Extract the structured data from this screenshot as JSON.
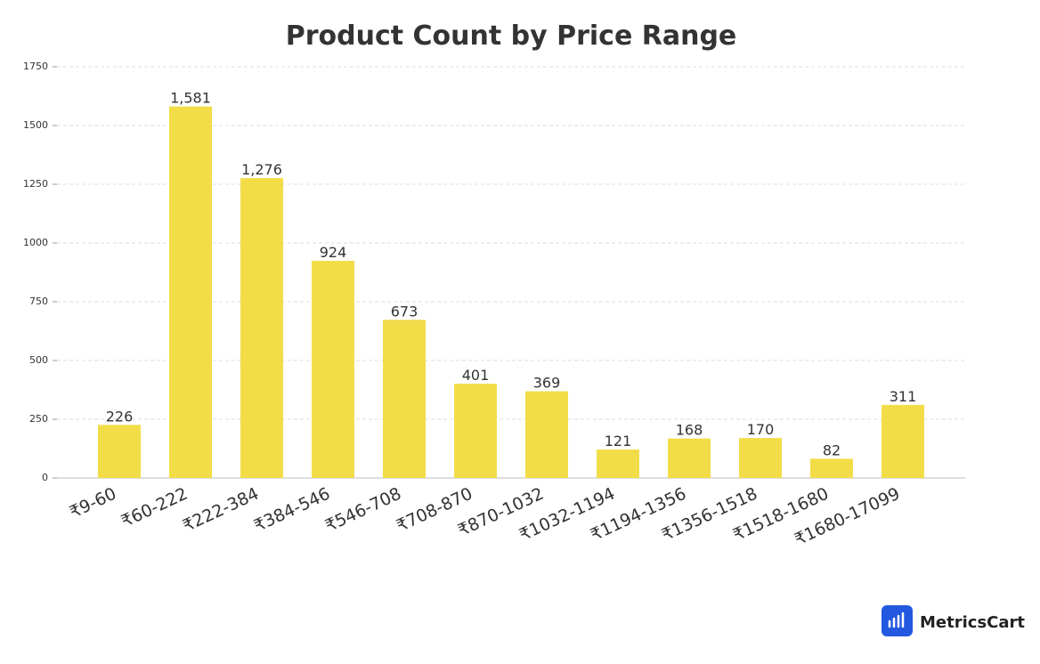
{
  "chart_data": {
    "type": "bar",
    "title": "Product Count by Price Range",
    "categories": [
      "₹9-60",
      "₹60-222",
      "₹222-384",
      "₹384-546",
      "₹546-708",
      "₹708-870",
      "₹870-1032",
      "₹1032-1194",
      "₹1194-1356",
      "₹1356-1518",
      "₹1518-1680",
      "₹1680-17099"
    ],
    "values": [
      226,
      1581,
      1276,
      924,
      673,
      401,
      369,
      121,
      168,
      170,
      82,
      311
    ],
    "value_labels": [
      "226",
      "1,581",
      "1,276",
      "924",
      "673",
      "401",
      "369",
      "121",
      "168",
      "170",
      "82",
      "311"
    ],
    "color": "#f2dd48",
    "ylim": [
      0,
      1750
    ],
    "yticks": [
      0,
      250,
      500,
      750,
      1000,
      1250,
      1500,
      1750
    ],
    "grid": true
  },
  "logo": {
    "text": "MetricsCart"
  }
}
